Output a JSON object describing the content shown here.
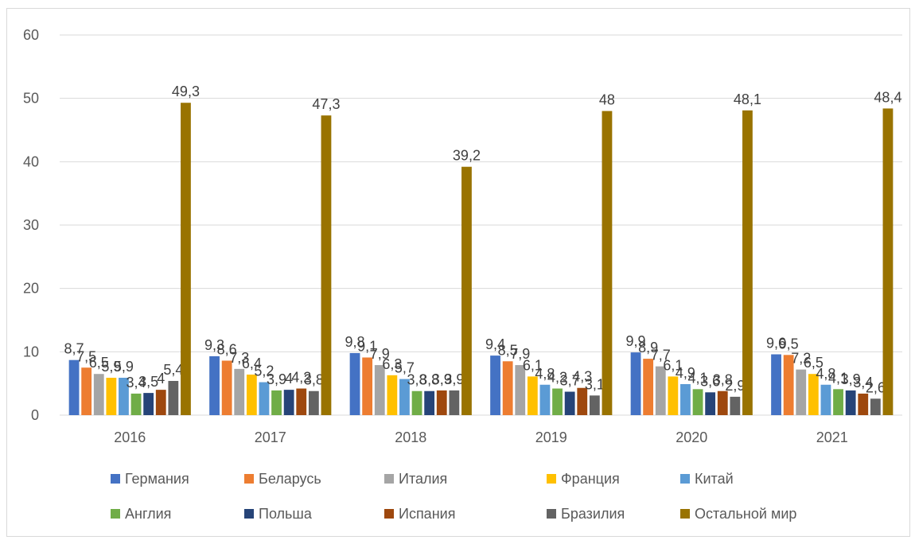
{
  "chart_data": {
    "type": "bar",
    "categories": [
      "2016",
      "2017",
      "2018",
      "2019",
      "2020",
      "2021"
    ],
    "ylim": [
      0,
      60
    ],
    "yticks": [
      0,
      10,
      20,
      30,
      40,
      50,
      60
    ],
    "grid": true,
    "legend_position": "bottom",
    "series": [
      {
        "name": "Германия",
        "color": "#4472C4",
        "values": [
          8.7,
          9.3,
          9.8,
          9.4,
          9.9,
          9.6
        ],
        "labels": [
          "8,7",
          "9,3",
          "9,8",
          "9,4",
          "9,9",
          "9,6"
        ]
      },
      {
        "name": "Беларусь",
        "color": "#ED7D31",
        "values": [
          7.5,
          8.6,
          9.1,
          8.5,
          8.9,
          9.5
        ],
        "labels": [
          "7,5",
          "8,6",
          "9,1",
          "8,5",
          "8,9",
          "9,5"
        ]
      },
      {
        "name": "Италия",
        "color": "#A5A5A5",
        "values": [
          6.5,
          7.3,
          7.9,
          7.9,
          7.7,
          7.2
        ],
        "labels": [
          "6,5",
          "7,3",
          "7,9",
          "7,9",
          "7,7",
          "7,2"
        ]
      },
      {
        "name": "Франция",
        "color": "#FFC000",
        "values": [
          5.9,
          6.4,
          6.3,
          6.1,
          6.1,
          6.5
        ],
        "labels": [
          "5,9",
          "6,4",
          "6,3",
          "6,1",
          "6,1",
          "6,5"
        ]
      },
      {
        "name": "Китай",
        "color": "#5B9BD5",
        "values": [
          5.9,
          5.2,
          5.7,
          4.8,
          4.9,
          4.8
        ],
        "labels": [
          "5,9",
          "5,2",
          "5,7",
          "4,8",
          "4,9",
          "4,8"
        ]
      },
      {
        "name": "Англия",
        "color": "#70AD47",
        "values": [
          3.4,
          3.9,
          3.8,
          4.2,
          4.1,
          4.1
        ],
        "labels": [
          "3,4",
          "3,9",
          "3,8",
          "4,2",
          "4,1",
          "4,1"
        ]
      },
      {
        "name": "Польша",
        "color": "#264478",
        "values": [
          3.5,
          4.0,
          3.8,
          3.7,
          3.6,
          3.9
        ],
        "labels": [
          "3,5",
          "4",
          "3,8",
          "3,7",
          "3,6",
          "3,9"
        ]
      },
      {
        "name": "Испания",
        "color": "#9E480E",
        "values": [
          4.0,
          4.2,
          3.9,
          4.3,
          3.8,
          3.4
        ],
        "labels": [
          "4",
          "4,2",
          "3,9",
          "4,3",
          "3,8",
          "3,4"
        ]
      },
      {
        "name": "Бразилия",
        "color": "#636363",
        "values": [
          5.4,
          3.8,
          3.9,
          3.1,
          2.9,
          2.6
        ],
        "labels": [
          "5,4",
          "3,8",
          "3,9",
          "3,1",
          "2,9",
          "2,6"
        ]
      },
      {
        "name": "Остальной мир",
        "color": "#997300",
        "values": [
          49.3,
          47.3,
          39.2,
          48.0,
          48.1,
          48.4
        ],
        "labels": [
          "49,3",
          "47,3",
          "39,2",
          "48",
          "48,1",
          "48,4"
        ]
      }
    ]
  }
}
